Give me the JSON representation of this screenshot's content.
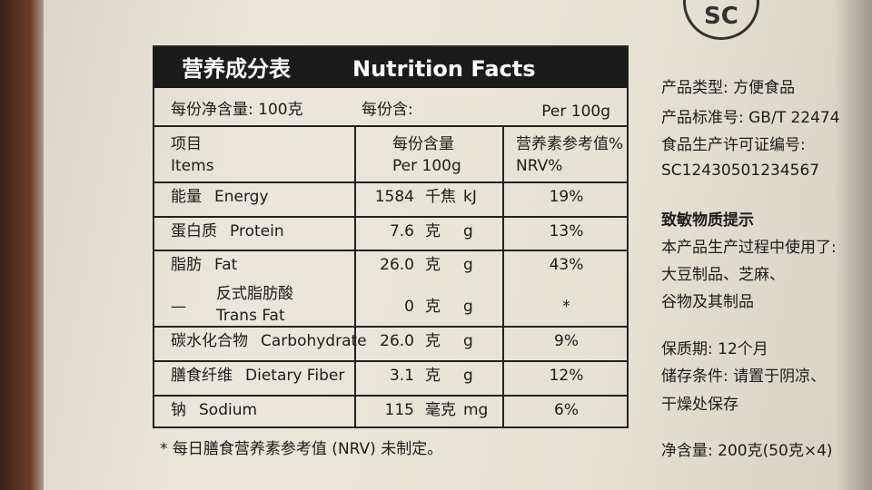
{
  "logo": {
    "text": "SC"
  },
  "table": {
    "title_cn": "营养成分表",
    "title_en": "Nutrition Facts",
    "serving": {
      "net": "每份净含量: 100克",
      "per_serving": "每份含:",
      "per_100g": "Per 100g"
    },
    "header": [
      [
        "项目",
        "Items"
      ],
      [
        "每份含量",
        "Per 100g"
      ],
      [
        "营养素参考值%",
        "NRV%"
      ]
    ],
    "rows": [
      {
        "name_cn": "能量",
        "name_en": "Energy",
        "amount": "1584",
        "unit_cn": "千焦",
        "unit_en": "kJ",
        "nrv": "19%"
      },
      {
        "name_cn": "蛋白质",
        "name_en": "Protein",
        "amount": "7.6",
        "unit_cn": "克",
        "unit_en": "g",
        "nrv": "13%"
      },
      {
        "name_cn": "脂肪",
        "name_en": "Fat",
        "amount": "26.0",
        "unit_cn": "克",
        "unit_en": "g",
        "nrv": "43%"
      },
      {
        "prefix": "—",
        "name_cn": "反式脂肪酸",
        "name_en": "Trans Fat",
        "amount": "0",
        "unit_cn": "克",
        "unit_en": "g",
        "nrv": "*"
      },
      {
        "name_cn": "碳水化合物",
        "name_en": "Carbohydrate",
        "amount": "26.0",
        "unit_cn": "克",
        "unit_en": "g",
        "nrv": "9%"
      },
      {
        "name_cn": "膳食纤维",
        "name_en": "Dietary Fiber",
        "amount": "3.1",
        "unit_cn": "克",
        "unit_en": "g",
        "nrv": "12%"
      },
      {
        "name_cn": "钠",
        "name_en": "Sodium",
        "amount": "115",
        "unit_cn": "毫克",
        "unit_en": "mg",
        "nrv": "6%"
      }
    ],
    "footnote": "* 每日膳食营养素参考值 (NRV) 未制定。"
  },
  "side_info": [
    "产品类型: 方便食品",
    "产品标准号: GB/T 22474",
    "食品生产许可证编号:",
    "SC12430501234567",
    "致敏物质提示",
    "本产品生产过程中使用了:",
    "大豆制品、芝麻、",
    "谷物及其制品",
    "保质期: 12个月",
    "储存条件: 请置于阴凉、",
    "干燥处保存",
    "净含量: 200克(50克×4)"
  ]
}
